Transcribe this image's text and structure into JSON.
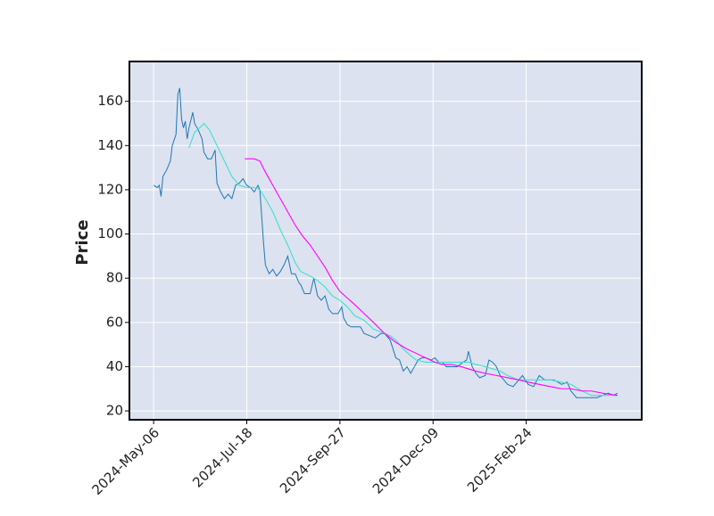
{
  "chart_data": {
    "type": "line",
    "y_label": "Price",
    "xlim": [
      -13,
      262
    ],
    "ylim": [
      16,
      178
    ],
    "yticks": [
      20,
      40,
      60,
      80,
      100,
      120,
      140,
      160
    ],
    "xticks": [
      {
        "value": 0,
        "label": "2024-May-06"
      },
      {
        "value": 50,
        "label": "2024-Jul-18"
      },
      {
        "value": 100,
        "label": "2024-Sep-27"
      },
      {
        "value": 150,
        "label": "2024-Dec-09"
      },
      {
        "value": 200,
        "label": "2025-Feb-24"
      }
    ],
    "grid": true,
    "series": [
      {
        "color": "#1f77b4",
        "x": [
          0,
          2,
          3,
          4,
          5,
          7,
          9,
          10,
          12,
          13,
          14,
          15,
          16,
          17,
          18,
          19,
          21,
          22,
          24,
          26,
          27,
          29,
          31,
          33,
          34,
          36,
          38,
          40,
          42,
          44,
          46,
          48,
          50,
          52,
          54,
          56,
          57,
          59,
          60,
          62,
          64,
          66,
          68,
          70,
          72,
          74,
          76,
          78,
          79,
          81,
          84,
          86,
          88,
          90,
          92,
          94,
          96,
          99,
          101,
          102,
          104,
          106,
          108,
          111,
          113,
          116,
          119,
          122,
          124,
          127,
          130,
          132,
          134,
          136,
          138,
          140,
          142,
          144,
          146,
          149,
          151,
          153,
          155,
          157,
          160,
          163,
          166,
          168,
          169,
          171,
          173,
          175,
          178,
          180,
          182,
          184,
          186,
          188,
          190,
          193,
          196,
          198,
          201,
          204,
          207,
          210,
          213,
          215,
          219,
          222,
          224,
          227,
          230,
          233,
          235,
          238,
          241,
          244,
          247,
          249
        ],
        "values": [
          122,
          121,
          122,
          117,
          126,
          129,
          133,
          140,
          145,
          163,
          166,
          152,
          148,
          151,
          143,
          148,
          155,
          150,
          147,
          143,
          137,
          134,
          134,
          138,
          123,
          119,
          116,
          118,
          116,
          122,
          123,
          125,
          122,
          121,
          119,
          122,
          120,
          96,
          86,
          82,
          84,
          81,
          83,
          86,
          90,
          82,
          82,
          78,
          77,
          73,
          73,
          80,
          72,
          70,
          72,
          66,
          64,
          64,
          67,
          62,
          59,
          58,
          58,
          58,
          55,
          54,
          53,
          55,
          55,
          52,
          44,
          43,
          38,
          40,
          37,
          40,
          43,
          44,
          44,
          43,
          44,
          42,
          42,
          40,
          40,
          40,
          42,
          43,
          47,
          40,
          37,
          35,
          36,
          43,
          42,
          40,
          36,
          34,
          32,
          31,
          34,
          36,
          32,
          31,
          36,
          34,
          34,
          34,
          32,
          33,
          29,
          26,
          26,
          26,
          26,
          26,
          27,
          28,
          27,
          28
        ]
      },
      {
        "color": "#40e0d0",
        "x": [
          19,
          22,
          26,
          27,
          30,
          34,
          38,
          42,
          46,
          50,
          54,
          57,
          60,
          64,
          68,
          72,
          76,
          79,
          84,
          88,
          92,
          96,
          100,
          104,
          108,
          113,
          118,
          124,
          127,
          130,
          134,
          138,
          141,
          146,
          151,
          155,
          160,
          165,
          169,
          173,
          178,
          182,
          186,
          190,
          196,
          201,
          207,
          213,
          219,
          224,
          230,
          235,
          241,
          247,
          249
        ],
        "values": [
          139,
          146,
          149,
          150,
          147,
          140,
          133,
          126,
          122,
          121,
          121,
          120,
          116,
          110,
          102,
          95,
          87,
          83,
          81,
          79,
          76,
          72,
          70,
          67,
          63,
          61,
          57,
          55,
          54,
          52,
          48,
          45,
          43,
          42,
          42,
          42,
          42,
          42,
          42,
          41,
          40,
          39,
          38,
          36,
          34,
          34,
          34,
          34,
          33,
          32,
          29,
          27,
          27,
          27,
          27
        ]
      },
      {
        "color": "#ff00ff",
        "x": [
          49,
          54,
          57,
          60,
          64,
          68,
          72,
          76,
          80,
          84,
          88,
          92,
          96,
          100,
          104,
          108,
          113,
          118,
          124,
          130,
          136,
          141,
          146,
          151,
          155,
          160,
          165,
          169,
          173,
          178,
          184,
          190,
          196,
          201,
          207,
          213,
          219,
          224,
          230,
          235,
          241,
          249
        ],
        "values": [
          134,
          134,
          133,
          128,
          122,
          116,
          110,
          104,
          99,
          95,
          90,
          85,
          79,
          74,
          71,
          68,
          64,
          60,
          55,
          51,
          48,
          46,
          44,
          42,
          41,
          41,
          40,
          39,
          38,
          37,
          36,
          35,
          34,
          33,
          32,
          31,
          30,
          30,
          29,
          29,
          28,
          27
        ]
      }
    ]
  }
}
